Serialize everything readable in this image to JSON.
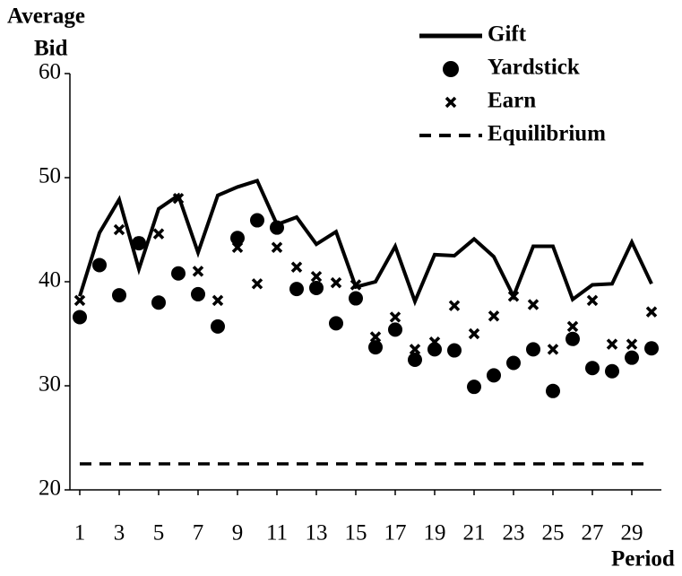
{
  "chart_data": {
    "type": "line",
    "ylabel": [
      "Average",
      "Bid"
    ],
    "xlabel": "Period",
    "x": [
      1,
      2,
      3,
      4,
      5,
      6,
      7,
      8,
      9,
      10,
      11,
      12,
      13,
      14,
      15,
      16,
      17,
      18,
      19,
      20,
      21,
      22,
      23,
      24,
      25,
      26,
      27,
      28,
      29,
      30
    ],
    "xlim": [
      0.5,
      30.5
    ],
    "xticks": [
      1,
      3,
      5,
      7,
      9,
      11,
      13,
      15,
      17,
      19,
      21,
      23,
      25,
      27,
      29
    ],
    "ylim": [
      20,
      60
    ],
    "yticks": [
      20,
      30,
      40,
      50,
      60
    ],
    "legend": "top-right",
    "series": [
      {
        "name": "Gift",
        "color": "#000000",
        "mark": "line",
        "values": [
          38.6,
          44.7,
          47.9,
          41.2,
          47.0,
          48.3,
          42.8,
          48.3,
          49.1,
          49.7,
          45.5,
          46.2,
          43.6,
          44.8,
          39.5,
          40.0,
          43.4,
          38.1,
          42.6,
          42.5,
          44.1,
          42.4,
          38.6,
          43.4,
          43.4,
          38.3,
          39.7,
          39.8,
          43.8,
          39.8
        ]
      },
      {
        "name": "Yardstick",
        "color": "#000000",
        "mark": "circle",
        "values": [
          36.6,
          41.6,
          38.7,
          43.7,
          38.0,
          40.8,
          38.8,
          35.7,
          44.2,
          45.9,
          45.2,
          39.3,
          39.4,
          36.0,
          38.4,
          33.7,
          35.4,
          32.5,
          33.5,
          33.4,
          29.9,
          31.0,
          32.2,
          33.5,
          29.5,
          34.5,
          31.7,
          31.4,
          32.7,
          33.6
        ]
      },
      {
        "name": "Earn",
        "color": "#000000",
        "mark": "x",
        "values": [
          38.2,
          41.6,
          45.0,
          43.8,
          44.6,
          48.0,
          41.0,
          38.2,
          43.3,
          39.8,
          43.3,
          41.4,
          40.5,
          39.9,
          39.7,
          34.7,
          36.6,
          33.5,
          34.2,
          37.7,
          35.0,
          36.7,
          38.6,
          37.8,
          33.5,
          35.7,
          38.2,
          34.0,
          34.0,
          37.1
        ]
      },
      {
        "name": "Equilibrium",
        "color": "#000000",
        "mark": "dashed",
        "values": [
          22.5,
          22.5,
          22.5,
          22.5,
          22.5,
          22.5,
          22.5,
          22.5,
          22.5,
          22.5,
          22.5,
          22.5,
          22.5,
          22.5,
          22.5,
          22.5,
          22.5,
          22.5,
          22.5,
          22.5,
          22.5,
          22.5,
          22.5,
          22.5,
          22.5,
          22.5,
          22.5,
          22.5,
          22.5,
          22.5
        ]
      }
    ]
  }
}
